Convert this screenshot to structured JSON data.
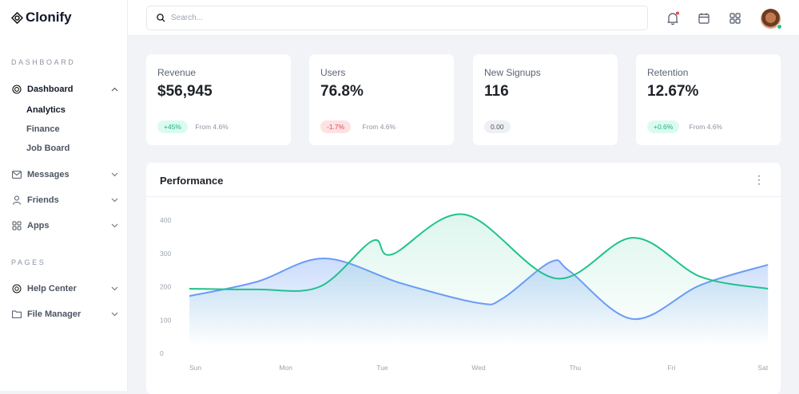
{
  "app": {
    "name": "Clonify"
  },
  "sidebar": {
    "sections": [
      {
        "label": "DASHBOARD"
      },
      {
        "label": "PAGES"
      }
    ],
    "dashboard": {
      "label": "Dashboard",
      "icon": "dashboard-icon",
      "expanded": true,
      "children": [
        {
          "label": "Analytics",
          "active": true
        },
        {
          "label": "Finance"
        },
        {
          "label": "Job Board"
        }
      ]
    },
    "items": [
      {
        "label": "Messages",
        "icon": "mail-icon"
      },
      {
        "label": "Friends",
        "icon": "user-icon"
      },
      {
        "label": "Apps",
        "icon": "grid-icon"
      }
    ],
    "pages": [
      {
        "label": "Help Center",
        "icon": "lifebuoy-icon"
      },
      {
        "label": "File Manager",
        "icon": "folder-icon"
      }
    ]
  },
  "header": {
    "search_placeholder": "Search...",
    "search_value": "",
    "icons": [
      "bell-icon",
      "calendar-icon",
      "apps-grid-icon"
    ],
    "notification_dot_color": "#ef4444",
    "status_color": "#22c58b"
  },
  "stats": [
    {
      "label": "Revenue",
      "value": "$56,945",
      "badge": "+45%",
      "badge_type": "positive",
      "from": "From 4.6%"
    },
    {
      "label": "Users",
      "value": "76.8%",
      "badge": "-1.7%",
      "badge_type": "negative",
      "from": "From 4.6%"
    },
    {
      "label": "New Signups",
      "value": "116",
      "badge": "0.00",
      "badge_type": "neutral",
      "from": ""
    },
    {
      "label": "Retention",
      "value": "12.67%",
      "badge": "+0.6%",
      "badge_type": "positive",
      "from": "From 4.6%"
    }
  ],
  "performance": {
    "title": "Performance"
  },
  "chart_data": {
    "type": "area",
    "categories": [
      "Sun",
      "Mon",
      "Tue",
      "Wed",
      "Thu",
      "Fri",
      "Sat"
    ],
    "yticks": [
      0,
      100,
      200,
      300,
      400
    ],
    "ylim": [
      0,
      400
    ],
    "smooth": true,
    "grid": false,
    "series": [
      {
        "color": "#6b9cf5",
        "x": [
          0,
          0.7,
          1.4,
          2.2,
          3.0,
          3.25,
          3.75,
          3.95,
          4.6,
          5.3,
          6
        ],
        "values": [
          172,
          215,
          285,
          210,
          151,
          165,
          275,
          245,
          103,
          205,
          266
        ]
      },
      {
        "color": "#1fc28e",
        "x": [
          0,
          0.7,
          1.35,
          1.9,
          2.1,
          2.85,
          3.8,
          4.6,
          5.3,
          6
        ],
        "values": [
          194,
          192,
          200,
          338,
          297,
          417,
          225,
          347,
          230,
          194
        ]
      }
    ]
  }
}
